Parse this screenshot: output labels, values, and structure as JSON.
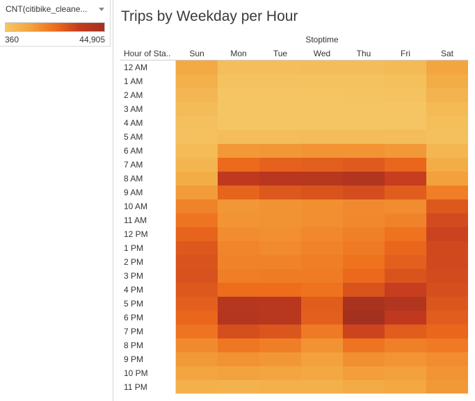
{
  "legend": {
    "title": "CNT(citibike_cleane...",
    "min_label": "360",
    "max_label": "44,905",
    "colors": [
      "#f4c764",
      "#f3a33d",
      "#ee6c1c",
      "#c33a1f",
      "#a4311f"
    ]
  },
  "chart_data": {
    "type": "heatmap",
    "title": "Trips by Weekday per Hour",
    "column_group_label": "Stoptime",
    "row_header_label": "Hour of Sta..",
    "columns": [
      "Sun",
      "Mon",
      "Tue",
      "Wed",
      "Thu",
      "Fri",
      "Sat"
    ],
    "rows": [
      "12 AM",
      "1 AM",
      "2 AM",
      "3 AM",
      "4 AM",
      "5 AM",
      "6 AM",
      "7 AM",
      "8 AM",
      "9 AM",
      "10 AM",
      "11 AM",
      "12 PM",
      "1 PM",
      "2 PM",
      "3 PM",
      "4 PM",
      "5 PM",
      "6 PM",
      "7 PM",
      "8 PM",
      "9 PM",
      "10 PM",
      "11 PM"
    ],
    "value_range": [
      360,
      44905
    ],
    "values": [
      [
        9500,
        3000,
        3200,
        3300,
        3600,
        4500,
        11000
      ],
      [
        7500,
        1600,
        1700,
        1800,
        2000,
        2600,
        8500
      ],
      [
        5500,
        900,
        1000,
        1100,
        1200,
        1600,
        6500
      ],
      [
        3800,
        600,
        650,
        700,
        750,
        1000,
        4500
      ],
      [
        2500,
        700,
        700,
        750,
        800,
        900,
        3000
      ],
      [
        2200,
        3500,
        3600,
        3700,
        3700,
        3500,
        2400
      ],
      [
        4000,
        13500,
        14000,
        14500,
        14500,
        13500,
        5500
      ],
      [
        6000,
        23000,
        25000,
        25500,
        26500,
        24000,
        8500
      ],
      [
        8500,
        35000,
        37500,
        38000,
        40000,
        33000,
        12000
      ],
      [
        13000,
        24500,
        27000,
        28000,
        29500,
        26000,
        19000
      ],
      [
        18000,
        14000,
        15000,
        15500,
        16500,
        16000,
        27000
      ],
      [
        21000,
        14500,
        15000,
        15500,
        17000,
        18000,
        30000
      ],
      [
        24500,
        16000,
        15500,
        17000,
        18500,
        21500,
        32000
      ],
      [
        27000,
        17500,
        16500,
        18000,
        20000,
        24000,
        30500
      ],
      [
        28000,
        18000,
        18000,
        19000,
        21500,
        25500,
        30500
      ],
      [
        28500,
        19000,
        19500,
        19500,
        23500,
        28000,
        30000
      ],
      [
        27000,
        22500,
        22500,
        21500,
        28000,
        33000,
        29000
      ],
      [
        25500,
        38500,
        37500,
        26000,
        43000,
        40000,
        27500
      ],
      [
        24000,
        39000,
        38000,
        25500,
        44905,
        35000,
        26000
      ],
      [
        21000,
        29000,
        27500,
        20000,
        31500,
        26000,
        24000
      ],
      [
        16500,
        20500,
        19000,
        15000,
        21000,
        18500,
        20000
      ],
      [
        13500,
        15000,
        14000,
        12000,
        15500,
        14500,
        16000
      ],
      [
        11000,
        11500,
        11000,
        10000,
        12500,
        12000,
        14500
      ],
      [
        7500,
        7000,
        7500,
        7500,
        9000,
        10000,
        13500
      ]
    ]
  }
}
